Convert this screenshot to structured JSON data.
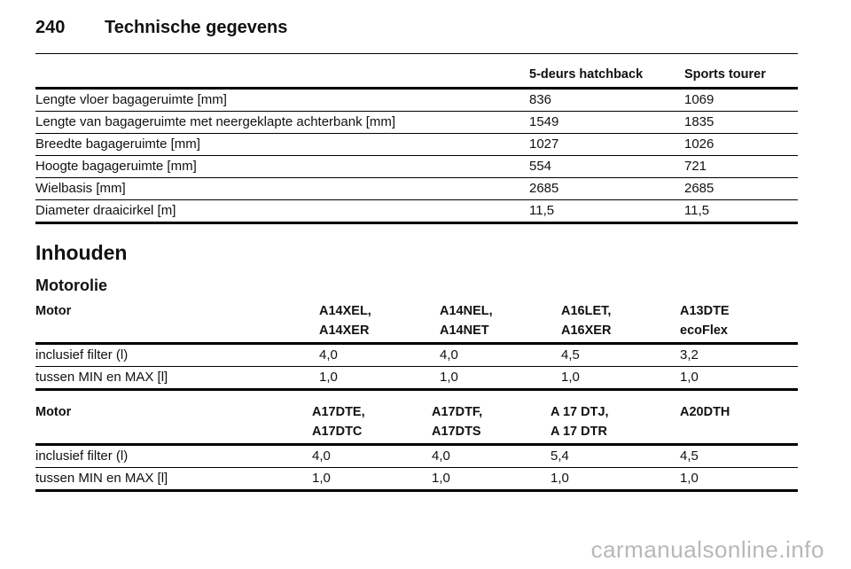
{
  "header": {
    "page_number": "240",
    "title": "Technische gegevens"
  },
  "dimensions": {
    "columns": [
      "",
      "5-deurs hatchback",
      "Sports tourer"
    ],
    "rows": [
      [
        "Lengte vloer bagageruimte [mm]",
        "836",
        "1069"
      ],
      [
        "Lengte van bagageruimte met neergeklapte achterbank [mm]",
        "1549",
        "1835"
      ],
      [
        "Breedte bagageruimte [mm]",
        "1027",
        "1026"
      ],
      [
        "Hoogte bagageruimte [mm]",
        "554",
        "721"
      ],
      [
        "Wielbasis [mm]",
        "2685",
        "2685"
      ],
      [
        "Diameter draaicirkel [m]",
        "11,5",
        "11,5"
      ]
    ]
  },
  "section_heading": "Inhouden",
  "sub_heading": "Motorolie",
  "oil_table_1": {
    "columns": [
      [
        "Motor",
        ""
      ],
      [
        "A14XEL,",
        "A14XER"
      ],
      [
        "A14NEL,",
        "A14NET"
      ],
      [
        "A16LET,",
        "A16XER"
      ],
      [
        "A13DTE",
        "ecoFlex"
      ]
    ],
    "rows": [
      [
        "inclusief filter (l)",
        "4,0",
        "4,0",
        "4,5",
        "3,2"
      ],
      [
        "tussen MIN en MAX [l]",
        "1,0",
        "1,0",
        "1,0",
        "1,0"
      ]
    ]
  },
  "oil_table_2": {
    "columns": [
      [
        "Motor",
        ""
      ],
      [
        "A17DTE,",
        "A17DTC"
      ],
      [
        "A17DTF,",
        "A17DTS"
      ],
      [
        "A 17 DTJ,",
        "A 17 DTR"
      ],
      [
        "A20DTH",
        ""
      ]
    ],
    "rows": [
      [
        "inclusief filter (l)",
        "4,0",
        "4,0",
        "5,4",
        "4,5"
      ],
      [
        "tussen MIN en MAX [l]",
        "1,0",
        "1,0",
        "1,0",
        "1,0"
      ]
    ]
  },
  "watermark": "carmanualsonline.info"
}
